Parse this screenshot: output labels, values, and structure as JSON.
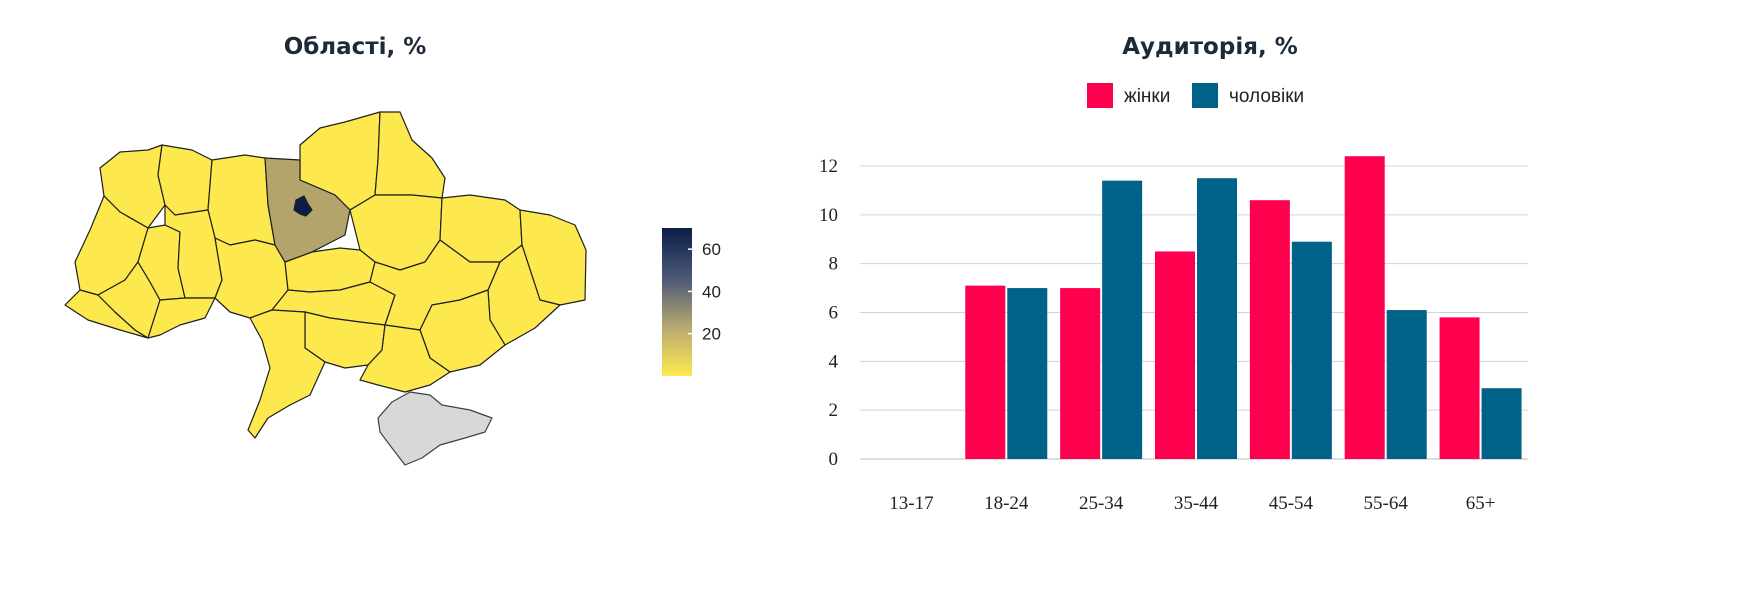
{
  "map": {
    "title": "Області, %",
    "scale_ticks": [
      60,
      40,
      20
    ],
    "scale_domain": [
      0,
      70
    ],
    "scale_colors": [
      "#fde94d",
      "#b7a970",
      "#4b5878",
      "#0c1d48"
    ],
    "highlight_color_kyiv_oblast": "#b3a46c",
    "highlight_color_kyiv_city": "#0c1d48",
    "base_color": "#fde94d",
    "no_data_color": "#d8d8d8"
  },
  "chart_data": {
    "type": "bar",
    "title": "Аудиторія, %",
    "xlabel": "",
    "ylabel": "",
    "categories": [
      "13-17",
      "18-24",
      "25-34",
      "35-44",
      "45-54",
      "55-64",
      "65+"
    ],
    "series": [
      {
        "name": "жінки",
        "color": "#ff004f",
        "values": [
          0,
          7.1,
          7.0,
          8.5,
          10.6,
          12.4,
          5.8
        ]
      },
      {
        "name": "чоловіки",
        "color": "#006189",
        "values": [
          0,
          7.0,
          11.4,
          11.5,
          8.9,
          6.1,
          2.9
        ]
      }
    ],
    "ylim": [
      0,
      12
    ],
    "yticks": [
      0,
      2,
      4,
      6,
      8,
      10,
      12
    ],
    "grid": true,
    "legend": "top-center"
  }
}
